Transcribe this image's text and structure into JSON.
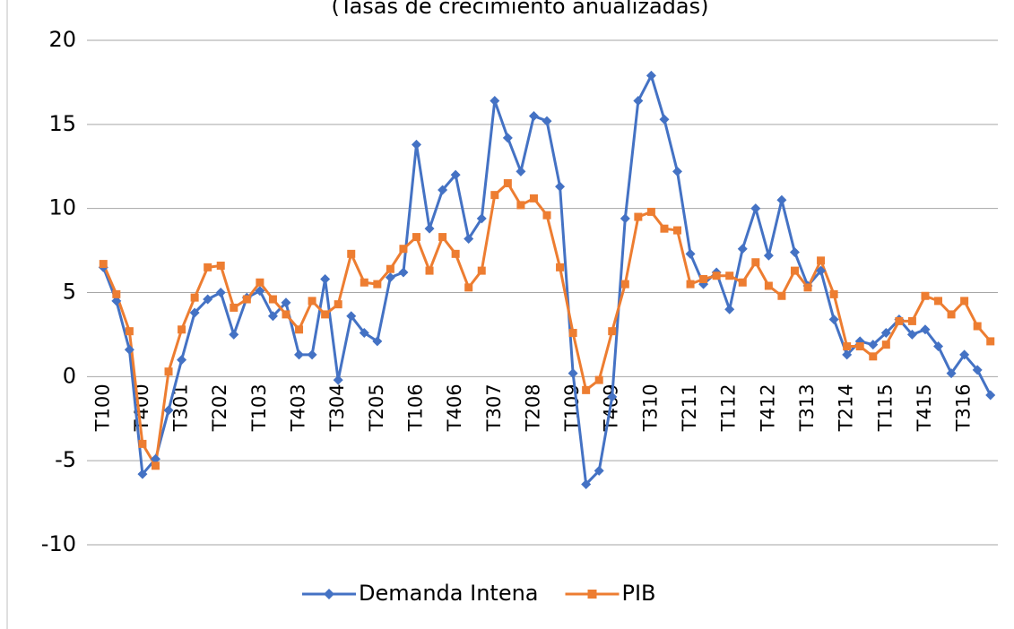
{
  "chart_data": {
    "type": "line",
    "subtitle": "(Tasas de crecimiento anualizadas)",
    "categories": [
      "T100",
      null,
      null,
      "T400",
      null,
      null,
      "T301",
      null,
      null,
      "T202",
      null,
      null,
      "T103",
      null,
      null,
      "T403",
      null,
      null,
      "T304",
      null,
      null,
      "T205",
      null,
      null,
      "T106",
      null,
      null,
      "T406",
      null,
      null,
      "T307",
      null,
      null,
      "T208",
      null,
      null,
      "T109",
      null,
      null,
      "T409",
      null,
      null,
      "T310",
      null,
      null,
      "T211",
      null,
      null,
      "T112",
      null,
      null,
      "T412",
      null,
      null,
      "T313",
      null,
      null,
      "T214",
      null,
      null,
      "T115",
      null,
      null,
      "T415",
      null,
      null,
      "T316",
      null,
      null
    ],
    "series": [
      {
        "name": "Demanda Intena",
        "color": "#4472c4",
        "marker": "diamond",
        "values": [
          6.5,
          4.5,
          1.6,
          -5.8,
          -4.9,
          -2.0,
          1.0,
          3.8,
          4.6,
          5.0,
          2.5,
          4.7,
          5.1,
          3.6,
          4.4,
          1.3,
          1.3,
          5.8,
          -0.2,
          3.6,
          2.6,
          2.1,
          5.9,
          6.2,
          13.8,
          8.8,
          11.1,
          12.0,
          8.2,
          9.4,
          16.4,
          14.2,
          12.2,
          15.5,
          15.2,
          11.3,
          0.2,
          -6.4,
          -5.6,
          -1.2,
          9.4,
          16.4,
          17.9,
          15.3,
          12.2,
          7.3,
          5.5,
          6.2,
          4.0,
          7.6,
          10.0,
          7.2,
          10.5,
          7.4,
          5.4,
          6.3,
          3.4,
          1.3,
          2.1,
          1.9,
          2.6,
          3.4,
          2.5,
          2.8,
          1.8,
          0.2,
          1.3,
          0.4,
          -1.1
        ]
      },
      {
        "name": "PIB",
        "color": "#ed7d31",
        "marker": "square",
        "values": [
          6.7,
          4.9,
          2.7,
          -4.0,
          -5.3,
          0.3,
          2.8,
          4.7,
          6.5,
          6.6,
          4.1,
          4.6,
          5.6,
          4.6,
          3.7,
          2.8,
          4.5,
          3.7,
          4.3,
          7.3,
          5.6,
          5.5,
          6.4,
          7.6,
          8.3,
          6.3,
          8.3,
          7.3,
          5.3,
          6.3,
          10.8,
          11.5,
          10.2,
          10.6,
          9.6,
          6.5,
          2.6,
          -0.8,
          -0.2,
          2.7,
          5.5,
          9.5,
          9.8,
          8.8,
          8.7,
          5.5,
          5.8,
          6.0,
          6.0,
          5.6,
          6.8,
          5.4,
          4.8,
          6.3,
          5.3,
          6.9,
          4.9,
          1.8,
          1.8,
          1.2,
          1.9,
          3.3,
          3.3,
          4.8,
          4.5,
          3.7,
          4.5,
          3.0,
          2.1
        ]
      }
    ],
    "ylim": [
      -10,
      20
    ],
    "yticks": [
      -10,
      -5,
      0,
      5,
      10,
      15,
      20
    ],
    "grid": true,
    "legend": "bottom"
  }
}
